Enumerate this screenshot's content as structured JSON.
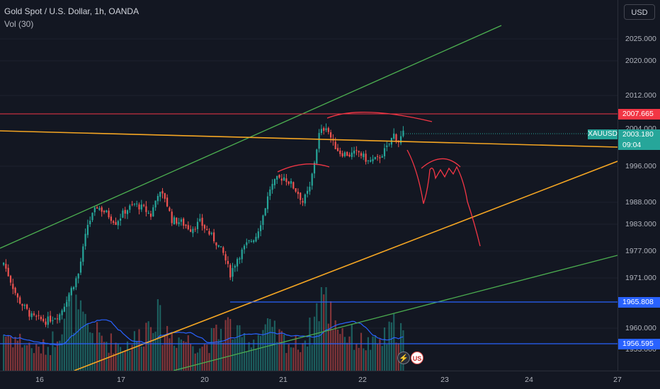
{
  "header": {
    "title": "Gold Spot / U.S. Dollar, 1h, OANDA",
    "volume_indicator": "Vol (30)"
  },
  "currency_button": "USD",
  "price_axis": {
    "ticks": [
      "2025.000",
      "2020.000",
      "2012.000",
      "1996.000",
      "1988.000",
      "1983.000",
      "1977.000",
      "1971.000",
      "1960.000",
      "1953.000"
    ],
    "ticks_partial": [
      "2004.000"
    ]
  },
  "price_badges": [
    {
      "label": "2007.665",
      "color": "#f23645",
      "kind": "horizontal-line"
    },
    {
      "label": "2003.180",
      "color": "#26a69a",
      "kind": "last-price"
    },
    {
      "label": "09:04",
      "color": "#26a69a",
      "kind": "countdown"
    },
    {
      "label": "1965.808",
      "color": "#2962ff",
      "kind": "horizontal-line"
    },
    {
      "label": "1956.595",
      "color": "#2962ff",
      "kind": "horizontal-line"
    }
  ],
  "symbol_tag": "XAUUSD",
  "time_axis": {
    "labels": [
      "16",
      "17",
      "20",
      "21",
      "22",
      "23",
      "24",
      "27"
    ]
  },
  "event_icons": [
    {
      "name": "flash-icon",
      "glyph": "⚡"
    },
    {
      "name": "us-flag-icon",
      "glyph": "US"
    }
  ],
  "colors": {
    "background": "#131722",
    "up": "#26a69a",
    "down": "#ef5350",
    "red_line": "#f23645",
    "orange_line": "#f5a623",
    "green_line": "#4caf50",
    "blue_line": "#2962ff",
    "drawing": "#f23645"
  },
  "chart_data": {
    "type": "candlestick",
    "symbol": "XAUUSD",
    "interval": "1h",
    "x_labels": [
      "16",
      "17",
      "20",
      "21",
      "22",
      "23",
      "24",
      "27"
    ],
    "ylim": [
      1951,
      2029
    ],
    "last_price": 2003.18,
    "horizontal_levels": [
      2007.665,
      1965.808,
      1956.595
    ],
    "close_path": [
      [
        0,
        1974.5
      ],
      [
        6,
        1966.5
      ],
      [
        12,
        1962.5
      ],
      [
        18,
        1961.5
      ],
      [
        24,
        1963.0
      ],
      [
        28,
        1967.5
      ],
      [
        32,
        1972.0
      ],
      [
        36,
        1983.0
      ],
      [
        40,
        1987.0
      ],
      [
        44,
        1985.5
      ],
      [
        48,
        1983.5
      ],
      [
        52,
        1986.0
      ],
      [
        56,
        1987.5
      ],
      [
        60,
        1986.5
      ],
      [
        63,
        1985.0
      ],
      [
        66,
        1990.0
      ],
      [
        69,
        1989.0
      ],
      [
        72,
        1984.0
      ],
      [
        76,
        1983.5
      ],
      [
        80,
        1982.0
      ],
      [
        84,
        1983.5
      ],
      [
        88,
        1981.0
      ],
      [
        91,
        1979.0
      ],
      [
        94,
        1976.5
      ],
      [
        97,
        1972.0
      ],
      [
        100,
        1975.5
      ],
      [
        104,
        1978.5
      ],
      [
        108,
        1980.5
      ],
      [
        111,
        1985.0
      ],
      [
        114,
        1991.0
      ],
      [
        117,
        1993.0
      ],
      [
        120,
        1993.5
      ],
      [
        123,
        1992.0
      ],
      [
        126,
        1990.0
      ],
      [
        128,
        1988.0
      ],
      [
        131,
        1991.0
      ],
      [
        133,
        1997.0
      ],
      [
        135,
        2003.0
      ],
      [
        138,
        2005.0
      ],
      [
        141,
        2001.0
      ],
      [
        144,
        1999.0
      ],
      [
        148,
        1998.5
      ],
      [
        152,
        1999.0
      ],
      [
        156,
        1997.0
      ],
      [
        160,
        1997.5
      ],
      [
        164,
        2000.0
      ],
      [
        167,
        2003.0
      ],
      [
        169,
        2001.5
      ],
      [
        171,
        2003.2
      ]
    ],
    "volume_ratio_path": [
      [
        0,
        0.45
      ],
      [
        8,
        0.35
      ],
      [
        14,
        0.25
      ],
      [
        20,
        0.3
      ],
      [
        28,
        0.8
      ],
      [
        36,
        0.5
      ],
      [
        44,
        0.35
      ],
      [
        52,
        0.3
      ],
      [
        60,
        0.45
      ],
      [
        64,
        0.75
      ],
      [
        68,
        0.5
      ],
      [
        74,
        0.4
      ],
      [
        80,
        0.35
      ],
      [
        86,
        0.3
      ],
      [
        92,
        0.45
      ],
      [
        96,
        0.55
      ],
      [
        100,
        0.4
      ],
      [
        106,
        0.35
      ],
      [
        112,
        0.5
      ],
      [
        118,
        0.4
      ],
      [
        124,
        0.3
      ],
      [
        128,
        0.35
      ],
      [
        132,
        0.5
      ],
      [
        136,
        0.95
      ],
      [
        140,
        0.7
      ],
      [
        146,
        0.45
      ],
      [
        152,
        0.35
      ],
      [
        158,
        0.3
      ],
      [
        164,
        0.4
      ],
      [
        168,
        0.55
      ],
      [
        171,
        0.45
      ]
    ],
    "volume_ma_visible": true
  }
}
